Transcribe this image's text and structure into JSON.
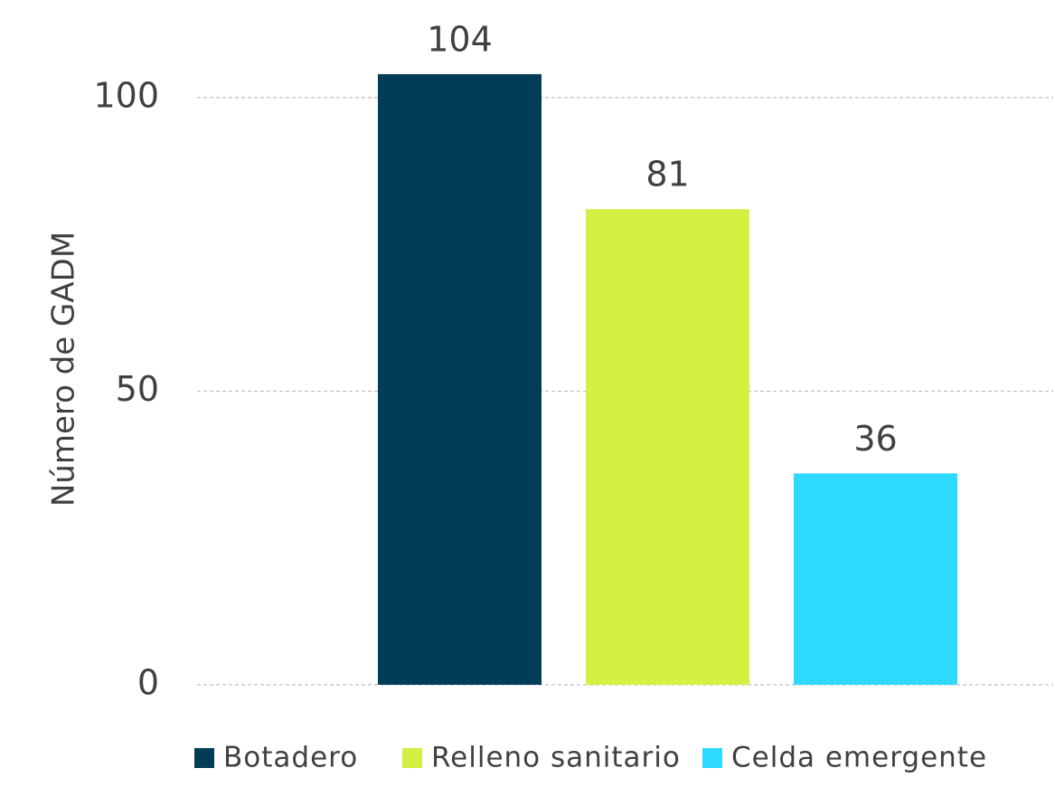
{
  "chart_data": {
    "type": "bar",
    "y_label": "Número de GADM",
    "categories": [
      null
    ],
    "series": [
      {
        "name": "Botadero",
        "color": "#013d56",
        "values": [
          104
        ]
      },
      {
        "name": "Relleno sanitario",
        "color": "#d5f043",
        "values": [
          81
        ]
      },
      {
        "name": "Celda emergente",
        "color": "#2cdaff",
        "values": [
          36
        ]
      }
    ],
    "ylim": [
      0,
      110
    ],
    "yticks": [
      0,
      50,
      100
    ],
    "grid": true,
    "legend": "bottom"
  }
}
